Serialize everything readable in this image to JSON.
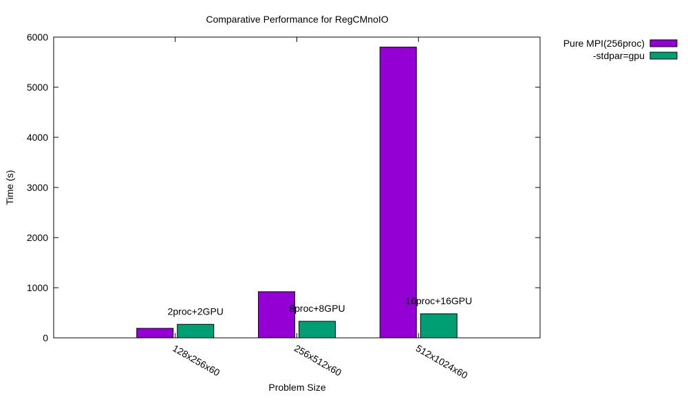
{
  "chart_data": {
    "type": "bar",
    "title": "Comparative Performance for RegCMnoIO",
    "xlabel": "Problem Size",
    "ylabel": "Time (s)",
    "ylim": [
      0,
      6000
    ],
    "yticks": [
      0,
      1000,
      2000,
      3000,
      4000,
      5000,
      6000
    ],
    "categories": [
      "128x256x60",
      "256x512x60",
      "512x1024x60"
    ],
    "series": [
      {
        "name": "Pure MPI(256proc)",
        "color": "#9400d3",
        "values": [
          190,
          920,
          5800
        ]
      },
      {
        "name": "-stdpar=gpu",
        "color": "#009e73",
        "values": [
          270,
          330,
          480
        ]
      }
    ],
    "annotations": [
      "2proc+2GPU",
      "8proc+8GPU",
      "16proc+16GPU"
    ],
    "legend_position": "top-right, outside plot",
    "grid": false
  }
}
